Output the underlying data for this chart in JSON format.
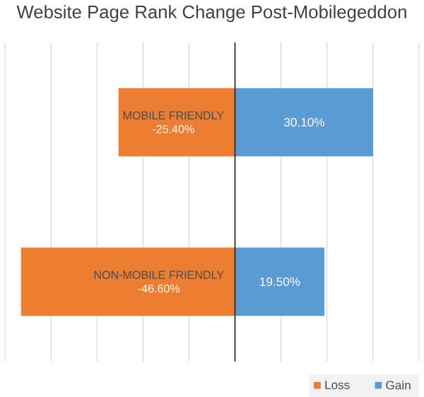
{
  "chart_data": {
    "type": "bar",
    "orientation": "horizontal",
    "stacked": true,
    "title": "Website Page Rank Change Post-Mobilegeddon",
    "categories": [
      "MOBILE FRIENDLY",
      "NON-MOBILE FRIENDLY"
    ],
    "series": [
      {
        "name": "Loss",
        "color": "#ed7d31",
        "values": [
          -25.4,
          -46.6
        ],
        "value_labels": [
          "-25.40%",
          "-46.60%"
        ]
      },
      {
        "name": "Gain",
        "color": "#5b9bd5",
        "values": [
          30.1,
          19.5
        ],
        "value_labels": [
          "30.10%",
          "19.50%"
        ]
      }
    ],
    "xlim": [
      -50,
      40
    ],
    "xticks": [
      {
        "value": -50,
        "label": null
      },
      {
        "value": -40,
        "label": null
      },
      {
        "value": -30,
        "label": null
      },
      {
        "value": -20,
        "label": null
      },
      {
        "value": -10,
        "label": null
      },
      {
        "value": 0,
        "label": null
      },
      {
        "value": 10,
        "label": null
      },
      {
        "value": 20,
        "label": null
      },
      {
        "value": 30,
        "label": null
      },
      {
        "value": 40,
        "label": null
      }
    ],
    "grid": "x",
    "legend": "bottom right"
  }
}
